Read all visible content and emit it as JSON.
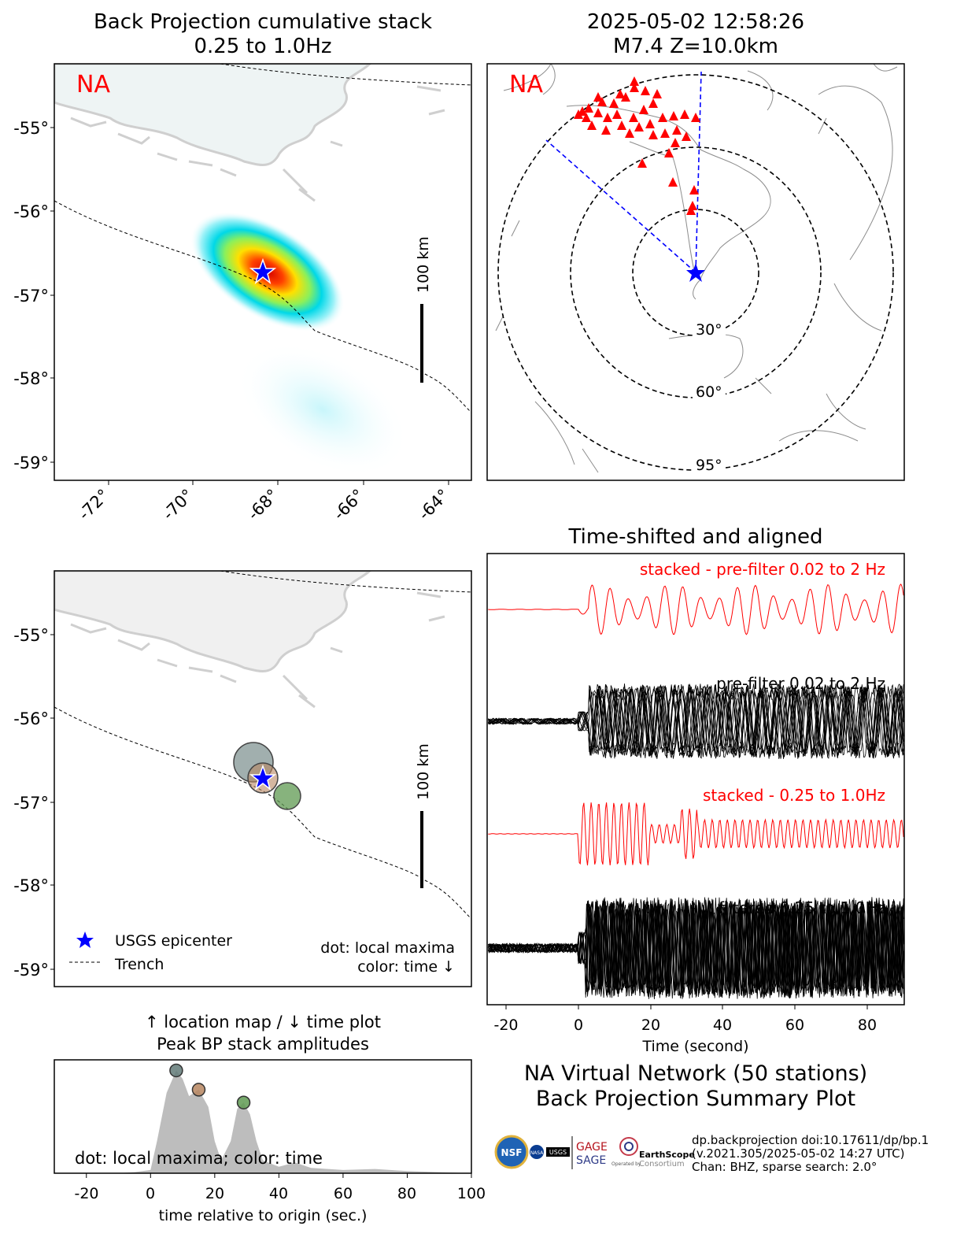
{
  "map_panel": {
    "title_line1": "Back Projection cumulative stack",
    "title_line2": "0.25 to 1.0Hz",
    "network_label": "NA",
    "lat_ticks": [
      "-55°",
      "-56°",
      "-57°",
      "-58°",
      "-59°"
    ],
    "lon_ticks": [
      "-72°",
      "-70°",
      "-68°",
      "-66°",
      "-64°"
    ],
    "scale_label": "100 km"
  },
  "event_panel": {
    "title_line1": "2025-05-02 12:58:26",
    "title_line2": "M7.4 Z=10.0km",
    "network_label": "NA",
    "ring_labels": [
      "30°",
      "60°",
      "95°"
    ]
  },
  "maxima_panel": {
    "scale_label": "100 km",
    "lat_ticks": [
      "-55°",
      "-56°",
      "-57°",
      "-58°",
      "-59°"
    ],
    "legend_epicenter": "USGS epicenter",
    "legend_trench": "Trench",
    "note_line1": "dot: local maxima",
    "note_line2": "color: time ↓"
  },
  "traces_panel": {
    "title": "Time-shifted and aligned",
    "labels": [
      "stacked - pre-filter 0.02 to 2 Hz",
      "pre-filter 0.02 to 2 Hz",
      "stacked - 0.25 to 1.0Hz",
      "filtered 0.25 to 1.0Hz"
    ],
    "xticks": [
      "-20",
      "0",
      "20",
      "40",
      "60",
      "80"
    ],
    "xlabel": "Time (second)"
  },
  "amp_panel": {
    "title_line1": "↑ location map / ↓ time plot",
    "title_line2": "Peak BP stack amplitudes",
    "note": "dot: local maxima; color: time",
    "xticks": [
      "-20",
      "0",
      "20",
      "40",
      "60",
      "80",
      "100"
    ],
    "xlabel": "time relative to origin (sec.)"
  },
  "summary": {
    "line1": "NA Virtual Network (50 stations)",
    "line2": "Back Projection Summary Plot"
  },
  "credits": {
    "line1": "dp.backprojection doi:10.17611/dp/bp.1",
    "line2": "(v.2021.305/2025-05-02 14:27 UTC)",
    "line3": "Chan: BHZ, sparse search: 2.0°",
    "logo_nsf": "NSF",
    "logo_nasa": "NASA",
    "logo_usgs": "USGS",
    "logo_gage": "GAGE",
    "logo_sage": "SAGE",
    "logo_earthscope": "EarthScope",
    "logo_consortium": "Consortium",
    "logo_operated": "Operated by"
  },
  "colors": {
    "epicenter": "#0000ff",
    "stations": "#ff0000",
    "stack_trace": "#ff0000",
    "amplitude_fill": "#bdbdbd",
    "maxima": [
      "#627a78",
      "#b78660",
      "#5f9a52"
    ]
  },
  "chart_data": {
    "type": "area",
    "x": [
      -30,
      -10,
      -5,
      0,
      2,
      5,
      8,
      10,
      12,
      15,
      18,
      20,
      22,
      25,
      27,
      29,
      31,
      33,
      35,
      40,
      45,
      50,
      60,
      70,
      80,
      90,
      100
    ],
    "values": [
      0,
      0,
      0.01,
      0.03,
      0.3,
      0.75,
      0.96,
      0.88,
      0.72,
      0.78,
      0.62,
      0.3,
      0.12,
      0.3,
      0.6,
      0.66,
      0.55,
      0.3,
      0.12,
      0.06,
      0.1,
      0.05,
      0.03,
      0.04,
      0.02,
      0.01,
      0
    ],
    "maxima_points": [
      {
        "time": 8,
        "amplitude": 0.96
      },
      {
        "time": 15,
        "amplitude": 0.78
      },
      {
        "time": 29,
        "amplitude": 0.66
      }
    ],
    "xlim": [
      -30,
      100
    ],
    "ylim": [
      0,
      1
    ]
  }
}
